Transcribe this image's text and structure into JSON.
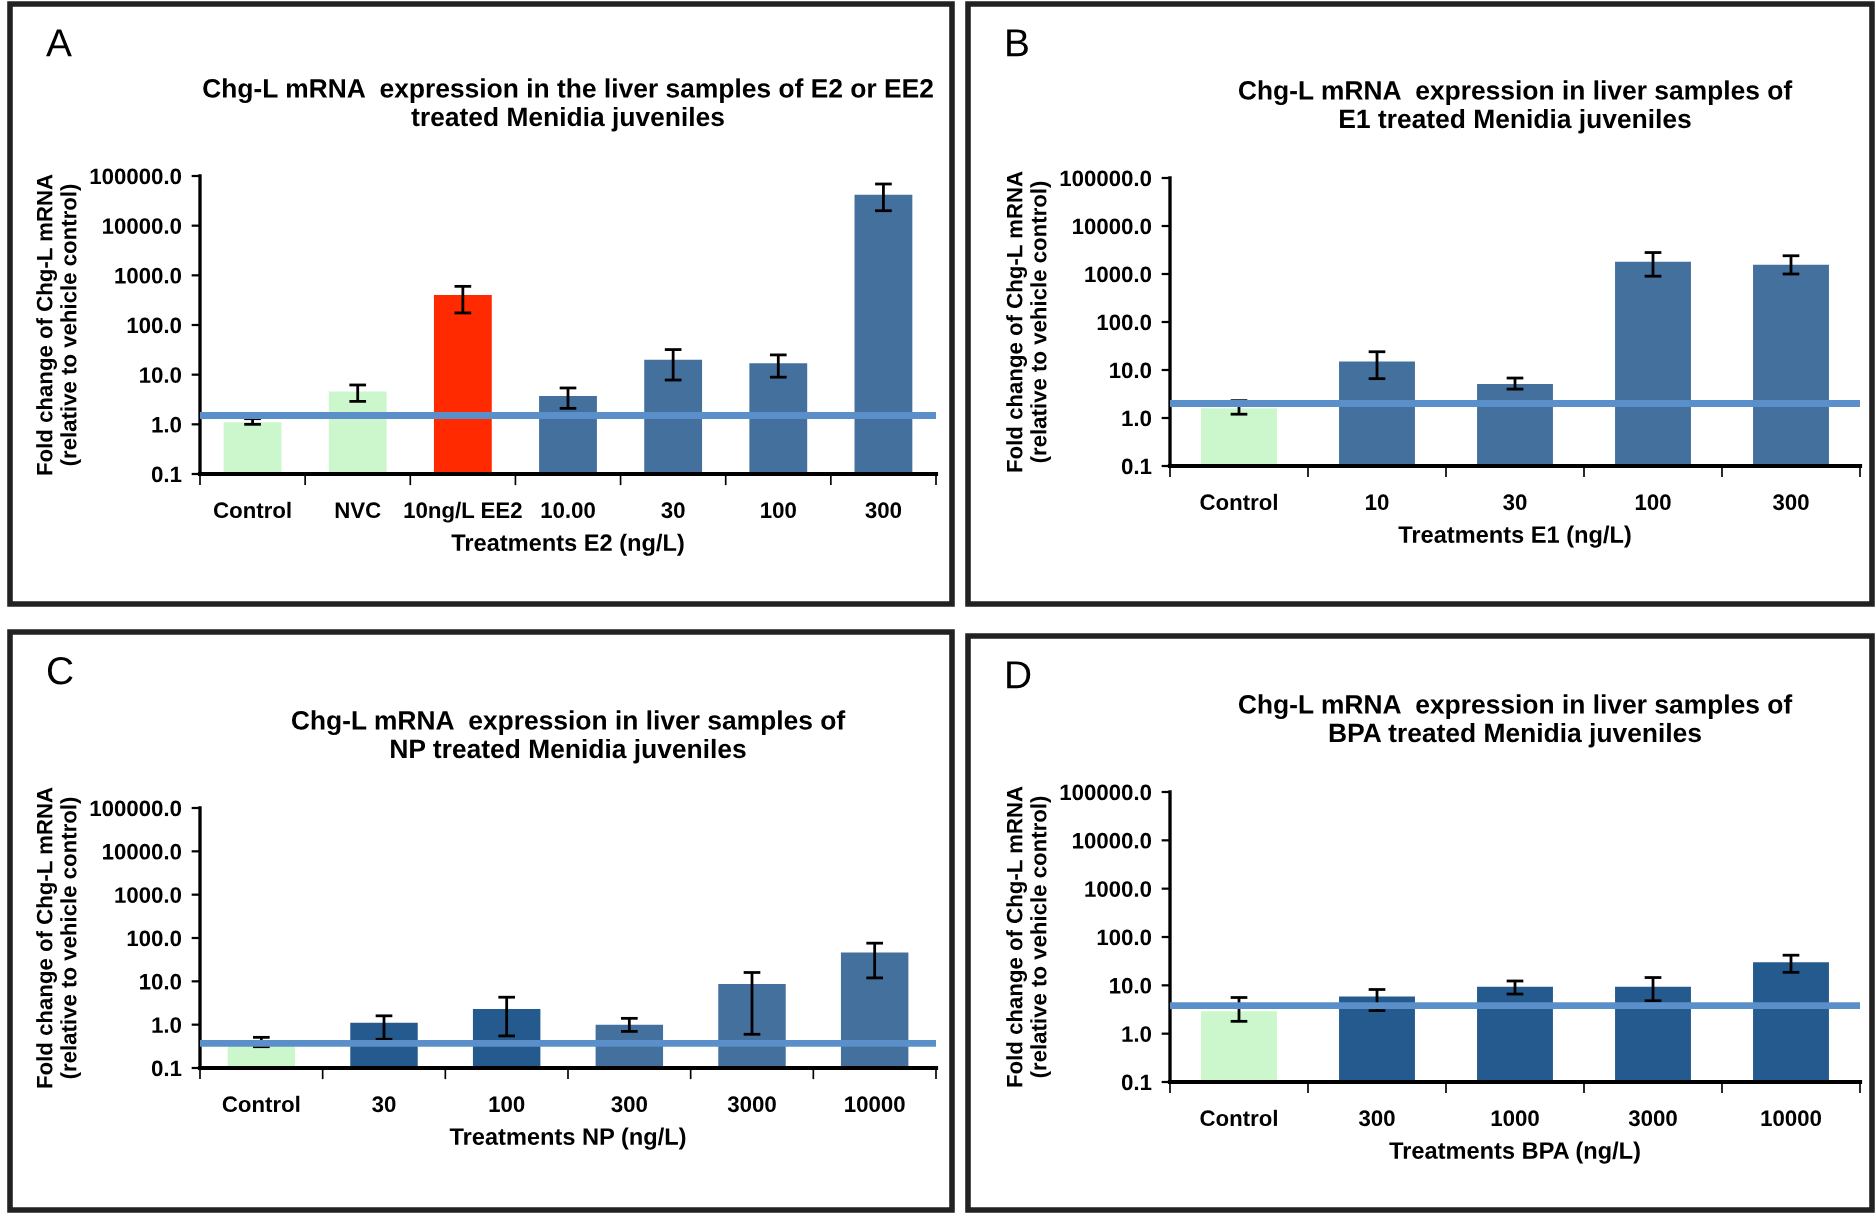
{
  "chart_data": [
    {
      "type": "bar",
      "title": "Chg-L mRNA  expression in the liver samples of E2 or EE2\ntreated Menidia juveniles",
      "xlabel": "Treatments E2 (ng/L)",
      "ylabel": "Fold change of Chg-L mRNA\n(relative to vehicle control)",
      "annotations": [
        "A"
      ],
      "log": true,
      "grid": false,
      "categories": [
        "Control",
        "NVC",
        "10ng/L EE2",
        "10.00",
        "30",
        "100",
        "300"
      ],
      "values": [
        1.1,
        4.6,
        400,
        3.7,
        20,
        17,
        42000
      ],
      "colors": [
        "#ccf7cc",
        "#ccf7cc",
        "#ff2a00",
        "#44709e",
        "#44709e",
        "#44709e",
        "#44709e"
      ],
      "errors": [
        [
          1.0,
          1.3
        ],
        [
          2.9,
          6.2
        ],
        [
          175,
          600
        ],
        [
          2.1,
          5.4
        ],
        [
          7.8,
          32
        ],
        [
          8.9,
          25
        ],
        [
          20000,
          69000
        ]
      ],
      "ylim": [
        0.1,
        100000
      ],
      "yticks": [
        {
          "value": 0.1,
          "label": "0.1"
        },
        {
          "value": 1,
          "label": "1.0"
        },
        {
          "value": 10,
          "label": "10.0"
        },
        {
          "value": 100,
          "label": "100.0"
        },
        {
          "value": 1000,
          "label": "1000.0"
        },
        {
          "value": 10000,
          "label": "10000.0"
        },
        {
          "value": 100000,
          "label": "100000.0"
        }
      ],
      "ref_lines": [
        {
          "axis": "y",
          "value": 1.5,
          "color": "#5b8fc9"
        }
      ]
    },
    {
      "type": "bar",
      "title": "Chg-L mRNA  expression in liver samples of\nE1 treated Menidia juveniles",
      "xlabel": "Treatments E1 (ng/L)",
      "ylabel": "Fold change of Chg-L mRNA\n(relative to vehicle control)",
      "annotations": [
        "B"
      ],
      "log": true,
      "grid": false,
      "categories": [
        "Control",
        "10",
        "30",
        "100",
        "300"
      ],
      "values": [
        1.6,
        15,
        5.1,
        1800,
        1550
      ],
      "colors": [
        "#ccf7cc",
        "#44709e",
        "#44709e",
        "#44709e",
        "#44709e"
      ],
      "errors": [
        [
          1.2,
          2.3
        ],
        [
          6.6,
          24
        ],
        [
          4.0,
          6.8
        ],
        [
          900,
          2800
        ],
        [
          1000,
          2400
        ]
      ],
      "ylim": [
        0.1,
        100000
      ],
      "yticks": [
        {
          "value": 0.1,
          "label": "0.1"
        },
        {
          "value": 1,
          "label": "1.0"
        },
        {
          "value": 10,
          "label": "10.0"
        },
        {
          "value": 100,
          "label": "100.0"
        },
        {
          "value": 1000,
          "label": "1000.0"
        },
        {
          "value": 10000,
          "label": "10000.0"
        },
        {
          "value": 100000,
          "label": "100000.0"
        }
      ],
      "ref_lines": [
        {
          "axis": "y",
          "value": 2,
          "color": "#5b8fc9"
        }
      ]
    },
    {
      "type": "bar",
      "title": "Chg-L mRNA  expression in liver samples of\nNP treated Menidia juveniles",
      "xlabel": "Treatments NP (ng/L)",
      "ylabel": "Fold change of Chg-L mRNA\n(relative to vehicle control)",
      "annotations": [
        "C"
      ],
      "log": true,
      "grid": false,
      "categories": [
        "Control",
        "30",
        "100",
        "300",
        "3000",
        "10000"
      ],
      "values": [
        0.4,
        1.1,
        2.3,
        1.0,
        8.7,
        46
      ],
      "colors": [
        "#ccf7cc",
        "#255a8e",
        "#255a8e",
        "#44709e",
        "#44709e",
        "#44709e"
      ],
      "errors": [
        [
          0.31,
          0.51
        ],
        [
          0.46,
          1.6
        ],
        [
          0.55,
          4.3
        ],
        [
          0.7,
          1.4
        ],
        [
          0.6,
          16
        ],
        [
          12,
          76
        ]
      ],
      "ylim": [
        0.1,
        100000
      ],
      "yticks": [
        {
          "value": 0.1,
          "label": "0.1"
        },
        {
          "value": 1,
          "label": "1.0"
        },
        {
          "value": 10,
          "label": "10.0"
        },
        {
          "value": 100,
          "label": "100.0"
        },
        {
          "value": 1000,
          "label": "1000.0"
        },
        {
          "value": 10000,
          "label": "10000.0"
        },
        {
          "value": 100000,
          "label": "100000.0"
        }
      ],
      "ref_lines": [
        {
          "axis": "y",
          "value": 0.37,
          "color": "#5b8fc9"
        }
      ]
    },
    {
      "type": "bar",
      "title": "Chg-L mRNA  expression in liver samples of\nBPA treated Menidia juveniles",
      "xlabel": "Treatments BPA (ng/L)",
      "ylabel": "Fold change of Chg-L mRNA\n(relative to vehicle control)",
      "annotations": [
        "D"
      ],
      "log": true,
      "grid": false,
      "categories": [
        "Control",
        "300",
        "1000",
        "3000",
        "10000"
      ],
      "values": [
        2.9,
        5.9,
        9.3,
        9.3,
        30
      ],
      "colors": [
        "#ccf7cc",
        "#255a8e",
        "#255a8e",
        "#255a8e",
        "#255a8e"
      ],
      "errors": [
        [
          1.8,
          5.6
        ],
        [
          3.0,
          8.2
        ],
        [
          6.6,
          12.3
        ],
        [
          4.8,
          14.5
        ],
        [
          18.6,
          42
        ]
      ],
      "ylim": [
        0.1,
        100000
      ],
      "yticks": [
        {
          "value": 0.1,
          "label": "0.1"
        },
        {
          "value": 1,
          "label": "1.0"
        },
        {
          "value": 10,
          "label": "10.0"
        },
        {
          "value": 100,
          "label": "100.0"
        },
        {
          "value": 1000,
          "label": "1000.0"
        },
        {
          "value": 10000,
          "label": "10000.0"
        },
        {
          "value": 100000,
          "label": "100000.0"
        }
      ],
      "ref_lines": [
        {
          "axis": "y",
          "value": 3.8,
          "color": "#5b8fc9"
        }
      ]
    }
  ]
}
